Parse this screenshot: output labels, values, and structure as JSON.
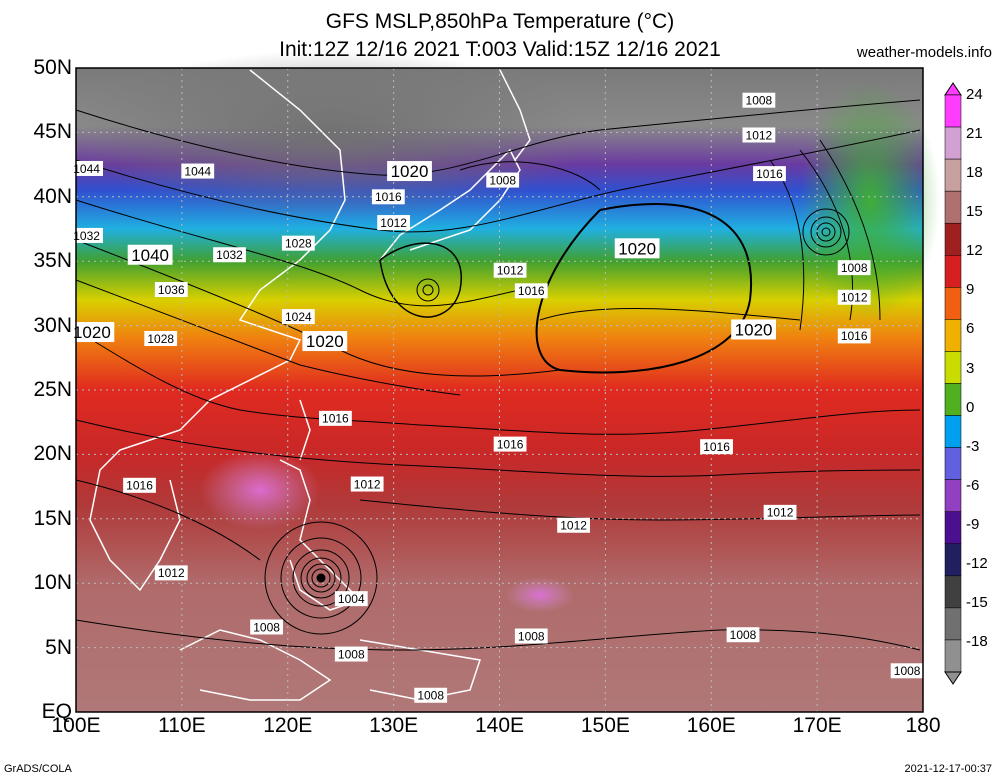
{
  "title": {
    "line1": "GFS MSLP,850hPa Temperature (°C)",
    "line2": "Init:12Z 12/16 2021 T:003 Valid:15Z 12/16 2021",
    "site": "weather-models.info"
  },
  "footer": {
    "credit": "GrADS/COLA",
    "timestamp": "2021-12-17-00:37"
  },
  "axes": {
    "lat_labels": [
      "50N",
      "45N",
      "40N",
      "35N",
      "30N",
      "25N",
      "20N",
      "15N",
      "10N",
      "5N",
      "EQ"
    ],
    "lon_labels": [
      "100E",
      "110E",
      "120E",
      "130E",
      "140E",
      "150E",
      "160E",
      "170E",
      "180"
    ],
    "lat_range": [
      0,
      50
    ],
    "lon_range": [
      100,
      180
    ]
  },
  "colorbar": {
    "labels": [
      "24",
      "21",
      "18",
      "15",
      "12",
      "9",
      "6",
      "3",
      "0",
      "-3",
      "-6",
      "-9",
      "-12",
      "-15",
      "-18"
    ],
    "colors": [
      "#ff3cff",
      "#d2a0d2",
      "#c8a0a0",
      "#b07070",
      "#a02020",
      "#d62020",
      "#f06010",
      "#f0b000",
      "#c8dc00",
      "#50b020",
      "#00a0f0",
      "#6060e0",
      "#9040c0",
      "#4a1090",
      "#202060",
      "#404040",
      "#707070",
      "#909090"
    ]
  },
  "isobars": [
    {
      "text": "1008",
      "lon": 164.5,
      "lat": 47.5
    },
    {
      "text": "1012",
      "lon": 164.5,
      "lat": 44.8
    },
    {
      "text": "1016",
      "lon": 165.5,
      "lat": 41.8
    },
    {
      "text": "1020",
      "lon": 131.5,
      "lat": 42.0,
      "big": true
    },
    {
      "text": "1016",
      "lon": 129.5,
      "lat": 40.0
    },
    {
      "text": "1008",
      "lon": 140.3,
      "lat": 41.3
    },
    {
      "text": "1012",
      "lon": 130.0,
      "lat": 38.0
    },
    {
      "text": "1044",
      "lon": 111.5,
      "lat": 42.0
    },
    {
      "text": "1044",
      "lon": 101.0,
      "lat": 42.2
    },
    {
      "text": "1040",
      "lon": 107.0,
      "lat": 35.5,
      "big": true
    },
    {
      "text": "1032",
      "lon": 101.0,
      "lat": 37.0
    },
    {
      "text": "1032",
      "lon": 114.5,
      "lat": 35.5
    },
    {
      "text": "1028",
      "lon": 121.0,
      "lat": 36.4
    },
    {
      "text": "1036",
      "lon": 109.0,
      "lat": 32.8
    },
    {
      "text": "1028",
      "lon": 108.0,
      "lat": 29.0
    },
    {
      "text": "1024",
      "lon": 121.0,
      "lat": 30.7
    },
    {
      "text": "1020",
      "lon": 101.5,
      "lat": 29.5,
      "big": true
    },
    {
      "text": "1020",
      "lon": 123.5,
      "lat": 28.8,
      "big": true
    },
    {
      "text": "1020",
      "lon": 153.0,
      "lat": 36.0,
      "big": true
    },
    {
      "text": "1020",
      "lon": 164.0,
      "lat": 29.7,
      "big": true
    },
    {
      "text": "1012",
      "lon": 141.0,
      "lat": 34.3
    },
    {
      "text": "1016",
      "lon": 143.0,
      "lat": 32.7
    },
    {
      "text": "1008",
      "lon": 173.5,
      "lat": 34.5
    },
    {
      "text": "1012",
      "lon": 173.5,
      "lat": 32.2
    },
    {
      "text": "1016",
      "lon": 173.5,
      "lat": 29.2
    },
    {
      "text": "1016",
      "lon": 124.5,
      "lat": 22.8
    },
    {
      "text": "1016",
      "lon": 141.0,
      "lat": 20.8
    },
    {
      "text": "1016",
      "lon": 160.5,
      "lat": 20.6
    },
    {
      "text": "1016",
      "lon": 106.0,
      "lat": 17.6
    },
    {
      "text": "1012",
      "lon": 127.5,
      "lat": 17.7
    },
    {
      "text": "1012",
      "lon": 147.0,
      "lat": 14.5
    },
    {
      "text": "1012",
      "lon": 166.5,
      "lat": 15.5
    },
    {
      "text": "1012",
      "lon": 109.0,
      "lat": 10.8
    },
    {
      "text": "1004",
      "lon": 126.0,
      "lat": 8.8
    },
    {
      "text": "1008",
      "lon": 118.0,
      "lat": 6.6
    },
    {
      "text": "1008",
      "lon": 126.0,
      "lat": 4.5
    },
    {
      "text": "1008",
      "lon": 143.0,
      "lat": 5.9
    },
    {
      "text": "1008",
      "lon": 163.0,
      "lat": 6.0
    },
    {
      "text": "1008",
      "lon": 178.5,
      "lat": 3.2
    },
    {
      "text": "1008",
      "lon": 133.5,
      "lat": 1.3
    }
  ]
}
